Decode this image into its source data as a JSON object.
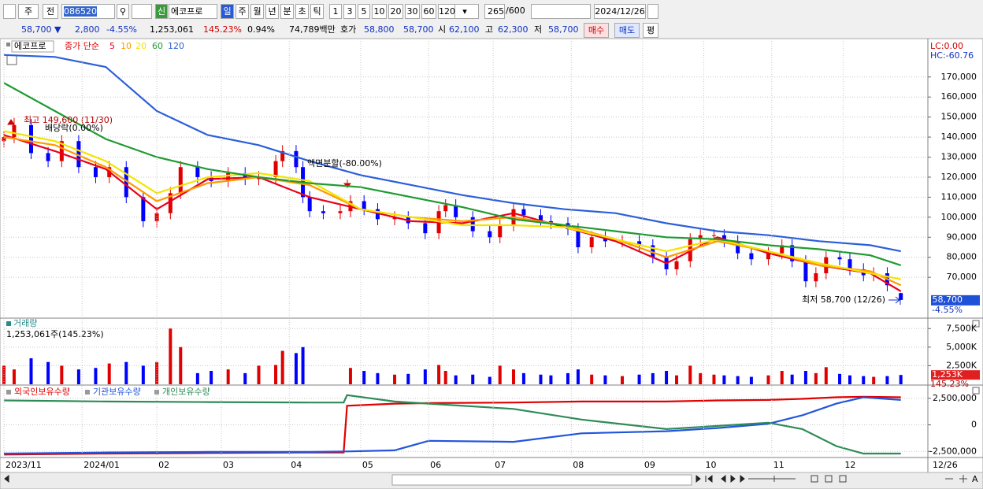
{
  "toolbar": {
    "market": "주",
    "all": "전",
    "code": "086520",
    "new_badge": "신",
    "name": "에코프로",
    "periods": [
      "일",
      "주",
      "월",
      "년",
      "분",
      "초",
      "틱"
    ],
    "selected_period": 0,
    "intervals": [
      "1",
      "3",
      "5",
      "10",
      "20",
      "30",
      "60",
      "120"
    ],
    "count": "265",
    "max": "/600",
    "date": "2024/12/26"
  },
  "quote": {
    "price": "58,700 ▼",
    "change": "2,800",
    "change_pct": "-4.55%",
    "volume": "1,253,061",
    "volume_ratio": "145.23%",
    "turnover": "0.94%",
    "amount": "74,789백만",
    "ask_label": "호가",
    "ask": "58,800",
    "bid": "58,700",
    "open_label": "시",
    "open": "62,100",
    "high_label": "고",
    "high": "62,300",
    "low_label": "저",
    "low": "58,700",
    "buy": "매수",
    "sell": "매도",
    "avg": "평"
  },
  "chart_data": [
    {
      "type": "candlestick",
      "name": "에코프로",
      "legend_title": "종가 단순",
      "lc": "LC:0.00",
      "hc": "HC:-60.76",
      "up_color": "#e00000",
      "down_color": "#0000ff",
      "grid": true,
      "xlim": [
        0,
        265
      ],
      "ylim": [
        50000,
        188000
      ],
      "yticks": [
        {
          "value": 170000,
          "label": "170,000"
        },
        {
          "value": 160000,
          "label": "160,000"
        },
        {
          "value": 150000,
          "label": "150,000"
        },
        {
          "value": 140000,
          "label": "140,000"
        },
        {
          "value": 130000,
          "label": "130,000"
        },
        {
          "value": 120000,
          "label": "120,000"
        },
        {
          "value": 110000,
          "label": "110,000"
        },
        {
          "value": 100000,
          "label": "100,000"
        },
        {
          "value": 90000,
          "label": "90,000"
        },
        {
          "value": 80000,
          "label": "80,000"
        },
        {
          "value": 70000,
          "label": "70,000"
        }
      ],
      "x": [
        0,
        3,
        8,
        13,
        17,
        22,
        27,
        31,
        36,
        41,
        45,
        49,
        52,
        57,
        61,
        66,
        71,
        75,
        80,
        82,
        86,
        88,
        90,
        94,
        99,
        102,
        106,
        110,
        115,
        119,
        124,
        128,
        130,
        133,
        138,
        143,
        146,
        150,
        153,
        158,
        161,
        166,
        169,
        173,
        177,
        182,
        187,
        191,
        195,
        198,
        202,
        205,
        209,
        212,
        216,
        220,
        225,
        229,
        232,
        236,
        239,
        242,
        246,
        249,
        253,
        256,
        260,
        264
      ],
      "open": [
        138000,
        140000,
        146000,
        132000,
        128000,
        138000,
        125000,
        120000,
        125000,
        110000,
        98000,
        102000,
        112000,
        125000,
        120000,
        118000,
        122000,
        119000,
        120000,
        128000,
        133000,
        125000,
        110000,
        103000,
        102000,
        103000,
        108000,
        104000,
        99000,
        100000,
        97000,
        92000,
        103000,
        106000,
        100000,
        93000,
        90000,
        96000,
        104000,
        101000,
        98000,
        97000,
        94000,
        85000,
        90000,
        88000,
        88000,
        86000,
        80000,
        74000,
        78000,
        89000,
        91000,
        91000,
        88000,
        82000,
        79000,
        82000,
        86000,
        78000,
        68000,
        72000,
        80000,
        79000,
        74000,
        71000,
        72000,
        62100
      ],
      "high": [
        143000,
        149600,
        149000,
        135000,
        141000,
        141000,
        128000,
        128000,
        128000,
        113000,
        105000,
        115000,
        128000,
        128000,
        123000,
        125000,
        125000,
        123000,
        131000,
        136000,
        136000,
        128000,
        113000,
        106000,
        106000,
        111000,
        111000,
        107000,
        103000,
        103000,
        100000,
        106000,
        109000,
        109000,
        103000,
        96000,
        99000,
        107000,
        107000,
        104000,
        101000,
        100000,
        97000,
        93000,
        93000,
        91000,
        91000,
        89000,
        83000,
        81000,
        92000,
        94000,
        94000,
        94000,
        91000,
        85000,
        85000,
        89000,
        89000,
        81000,
        75000,
        83000,
        83000,
        82000,
        77000,
        75000,
        75000,
        62300
      ],
      "low": [
        135000,
        137000,
        129000,
        125000,
        125000,
        122000,
        117000,
        117000,
        107000,
        95000,
        95000,
        99000,
        109000,
        117000,
        115000,
        115000,
        116000,
        116000,
        117000,
        125000,
        122000,
        107000,
        100000,
        99000,
        99000,
        100000,
        101000,
        96000,
        96000,
        94000,
        89000,
        89000,
        100000,
        97000,
        90000,
        87000,
        87000,
        93000,
        98000,
        95000,
        94000,
        91000,
        82000,
        82000,
        85000,
        85000,
        83000,
        77000,
        71000,
        71000,
        75000,
        86000,
        88000,
        85000,
        79000,
        76000,
        76000,
        79000,
        75000,
        65000,
        65000,
        69000,
        76000,
        71000,
        68000,
        68000,
        63000,
        58700
      ],
      "close": [
        140000,
        146000,
        132000,
        128000,
        138000,
        125000,
        120000,
        125000,
        110000,
        98000,
        102000,
        112000,
        125000,
        120000,
        118000,
        122000,
        119000,
        120000,
        128000,
        133000,
        125000,
        110000,
        103000,
        102000,
        103000,
        108000,
        104000,
        99000,
        100000,
        97000,
        92000,
        103000,
        106000,
        100000,
        93000,
        90000,
        96000,
        104000,
        101000,
        98000,
        97000,
        94000,
        85000,
        90000,
        88000,
        88000,
        86000,
        80000,
        74000,
        78000,
        89000,
        91000,
        91000,
        88000,
        82000,
        79000,
        82000,
        86000,
        78000,
        68000,
        72000,
        80000,
        79000,
        74000,
        71000,
        72000,
        66000,
        58700
      ],
      "ma_x": [
        0,
        15,
        30,
        45,
        60,
        75,
        90,
        105,
        120,
        135,
        150,
        165,
        180,
        195,
        210,
        225,
        240,
        255,
        264
      ],
      "moving_averages": [
        {
          "name": "5",
          "color": "#e8001c",
          "values": [
            141000,
            133000,
            124000,
            104000,
            119000,
            120000,
            110000,
            104000,
            98000,
            97000,
            102000,
            95000,
            88000,
            77000,
            90000,
            82000,
            76000,
            72000,
            63000
          ]
        },
        {
          "name": "10",
          "color": "#ff9900",
          "values": [
            140000,
            136000,
            125000,
            108000,
            117000,
            120000,
            116000,
            104000,
            100000,
            98000,
            100000,
            96000,
            89000,
            80000,
            88000,
            83000,
            76000,
            73000,
            66000
          ]
        },
        {
          "name": "20",
          "color": "#f2e400",
          "values": [
            143000,
            138000,
            128000,
            112000,
            120000,
            122000,
            118000,
            104000,
            100000,
            96000,
            96000,
            95000,
            89000,
            83000,
            89000,
            83000,
            77000,
            72000,
            69000
          ]
        },
        {
          "name": "60",
          "color": "#1e9b30",
          "values": [
            167000,
            153000,
            139000,
            130000,
            124000,
            120000,
            117000,
            115000,
            110000,
            105000,
            99000,
            96000,
            93000,
            90000,
            89000,
            86000,
            84000,
            81000,
            76000
          ]
        },
        {
          "name": "120",
          "color": "#2b5fd9",
          "values": [
            181000,
            180000,
            175000,
            153000,
            141000,
            136000,
            128000,
            121000,
            116000,
            111000,
            107000,
            104000,
            102000,
            97000,
            93000,
            91000,
            88000,
            86000,
            83000
          ]
        }
      ],
      "annotations": [
        "최고 149,600 (11/30)",
        "배당락(0.00%)",
        "액면분할(-80.00%)",
        "최저 58,700 (12/26)"
      ],
      "last_label": {
        "value": 58700,
        "label": "58,700"
      },
      "last_change": "-4.55%"
    },
    {
      "type": "bar",
      "title": "거래량",
      "subtitle": "1,253,061주(145.23%)",
      "grid": true,
      "xlim": [
        0,
        265
      ],
      "ylim": [
        0,
        8800000
      ],
      "yticks": [
        {
          "value": 7500000,
          "label": "7,500K"
        },
        {
          "value": 5000000,
          "label": "5,000K"
        },
        {
          "value": 2500000,
          "label": "2,500K"
        }
      ],
      "x": [
        0,
        3,
        8,
        13,
        17,
        22,
        27,
        31,
        36,
        41,
        45,
        49,
        52,
        57,
        61,
        66,
        71,
        75,
        80,
        82,
        86,
        88,
        90,
        94,
        99,
        102,
        106,
        110,
        115,
        119,
        124,
        128,
        130,
        133,
        138,
        143,
        146,
        150,
        153,
        158,
        161,
        166,
        169,
        173,
        177,
        182,
        187,
        191,
        195,
        198,
        202,
        205,
        209,
        212,
        216,
        220,
        225,
        229,
        232,
        236,
        239,
        242,
        246,
        249,
        253,
        256,
        260,
        264
      ],
      "values": [
        2500000,
        2000000,
        3500000,
        3000000,
        2500000,
        2000000,
        2200000,
        2800000,
        3000000,
        2500000,
        3000000,
        7500000,
        5000000,
        1500000,
        1800000,
        2000000,
        1500000,
        2500000,
        2600000,
        4500000,
        4200000,
        5000000,
        null,
        null,
        null,
        2200000,
        1800000,
        1500000,
        1300000,
        1400000,
        2000000,
        2600000,
        1800000,
        1200000,
        1300000,
        1000000,
        2500000,
        2000000,
        1500000,
        1300000,
        1200000,
        1500000,
        2000000,
        1300000,
        1200000,
        1100000,
        1300000,
        1500000,
        1800000,
        1200000,
        2500000,
        1500000,
        1300000,
        1200000,
        1100000,
        1000000,
        1200000,
        1800000,
        1300000,
        1800000,
        1500000,
        2300000,
        1400000,
        1200000,
        1100000,
        1000000,
        1100000,
        1253061
      ],
      "last_label": {
        "value": 1253061,
        "label": "1,253K"
      },
      "last_ratio": "145.23%"
    },
    {
      "type": "line",
      "grid": true,
      "xlim": [
        0,
        265
      ],
      "ylim": [
        -3000000,
        3600000
      ],
      "yticks": [
        {
          "value": 2500000,
          "label": "2,500,000"
        },
        0,
        {
          "value": -2500000,
          "label": "-2,500,000"
        }
      ],
      "xticks": [
        {
          "value": 0,
          "label": "2023/11"
        },
        {
          "value": 23,
          "label": "2024/01"
        },
        {
          "value": 45,
          "label": "02"
        },
        {
          "value": 64,
          "label": "03"
        },
        {
          "value": 84,
          "label": "04"
        },
        {
          "value": 105,
          "label": "05"
        },
        {
          "value": 125,
          "label": "06"
        },
        {
          "value": 144,
          "label": "07"
        },
        {
          "value": 167,
          "label": "08"
        },
        {
          "value": 188,
          "label": "09"
        },
        {
          "value": 206,
          "label": "10"
        },
        {
          "value": 226,
          "label": "11"
        },
        {
          "value": 247,
          "label": "12"
        }
      ],
      "end_label": "12/26",
      "x": [
        0,
        30,
        60,
        90,
        100,
        101,
        115,
        125,
        150,
        170,
        195,
        210,
        225,
        235,
        245,
        253,
        264
      ],
      "series": [
        {
          "name": "외국인보유수량",
          "color": "#e00000",
          "values": [
            -2800000,
            -2700000,
            -2650000,
            -2600000,
            -2600000,
            1800000,
            2000000,
            2050000,
            2100000,
            2200000,
            2200000,
            2300000,
            2350000,
            2450000,
            2600000,
            2650000,
            2600000
          ]
        },
        {
          "name": "기관보유수량",
          "color": "#2255dd",
          "values": [
            -2700000,
            -2600000,
            -2550000,
            -2550000,
            -2500000,
            -2500000,
            -2400000,
            -1500000,
            -1600000,
            -800000,
            -600000,
            -300000,
            100000,
            900000,
            2000000,
            2600000,
            2350000
          ]
        },
        {
          "name": "개인보유수량",
          "color": "#2e8b57",
          "values": [
            2300000,
            2200000,
            2150000,
            2100000,
            2100000,
            2800000,
            2200000,
            2000000,
            1500000,
            500000,
            -400000,
            -100000,
            200000,
            -400000,
            -2000000,
            -2700000,
            -2700000
          ]
        }
      ]
    }
  ]
}
